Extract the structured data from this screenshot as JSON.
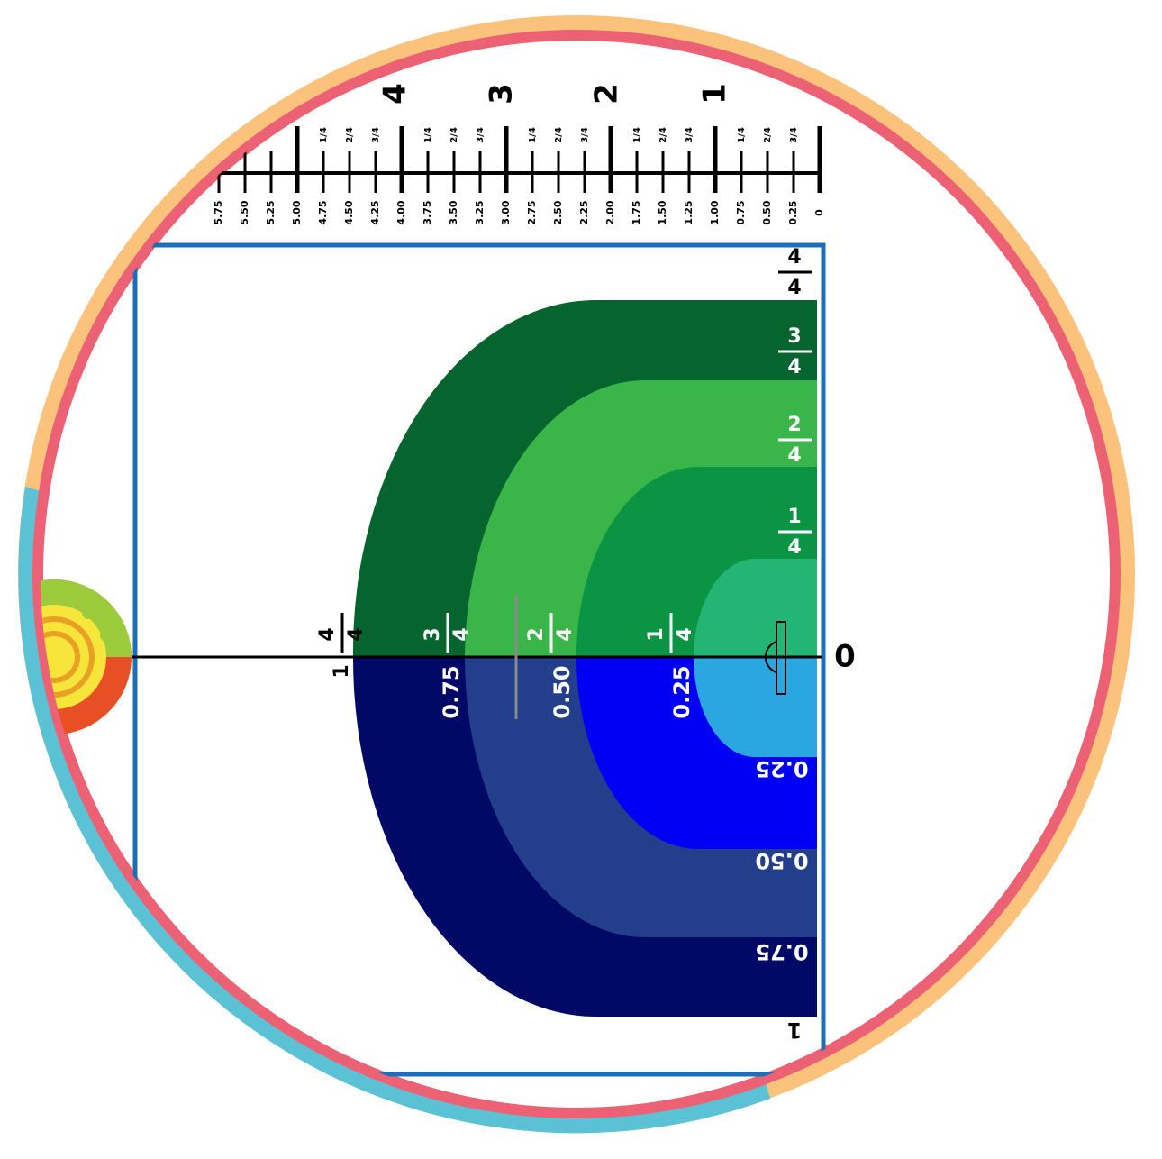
{
  "ruler": {
    "major_labels": [
      "4",
      "3",
      "2",
      "1"
    ],
    "minor_labels": [
      "5.75",
      "5.50",
      "5.25",
      "5.00",
      "4.75",
      "4.50",
      "4.25",
      "4.00",
      "3.75",
      "3.50",
      "3.25",
      "3.00",
      "2.75",
      "2.50",
      "2.25",
      "2.00",
      "1.75",
      "1.50",
      "1.25",
      "1.00",
      "0.75",
      "0.50",
      "0.25",
      "0"
    ],
    "fraction_numerators": [
      "3",
      "2",
      "1",
      "3",
      "2",
      "1",
      "3",
      "2",
      "1",
      "3",
      "2",
      "1",
      "3",
      "2",
      "1"
    ],
    "fraction_denominator": "4"
  },
  "green_fractions": [
    {
      "num": "4",
      "den": "4"
    },
    {
      "num": "3",
      "den": "4"
    },
    {
      "num": "2",
      "den": "4"
    },
    {
      "num": "1",
      "den": "4"
    }
  ],
  "axis_fractions": [
    {
      "num": "4",
      "den": "4",
      "whole": "1"
    },
    {
      "num": "3",
      "den": "4"
    },
    {
      "num": "2",
      "den": "4"
    },
    {
      "num": "1",
      "den": "4"
    }
  ],
  "axis_decimals": [
    "0.75",
    "0.50",
    "0.25"
  ],
  "blue_decimals": [
    "0.25",
    "0.50",
    "0.75"
  ],
  "zero_label": "0",
  "one_label": "1",
  "colors": {
    "outer_ring_orange": "#fbc27c",
    "outer_ring_blue": "#5bc2d6",
    "inner_ring": "#ec6274",
    "frame_blue": "#1a6fb8",
    "green_1": "#06652f",
    "green_2": "#39b54a",
    "green_3": "#0a9444",
    "green_4": "#22b573",
    "blue_1": "#000a66",
    "blue_2": "#233e8b",
    "blue_3": "#0000f5",
    "blue_4": "#2aa6e0"
  }
}
